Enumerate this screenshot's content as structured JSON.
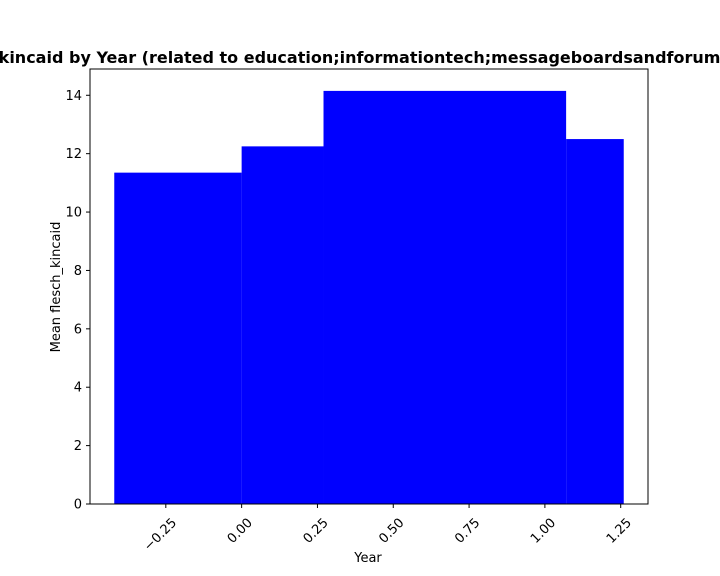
{
  "chart_data": {
    "type": "bar",
    "title": "Plot of Mean flesch_kincaid by Year (related to education;informationtech;messageboardsandforums Mean flesch_kincaid",
    "xlabel": "Year",
    "ylabel": "Mean flesch_kincaid",
    "xlim": [
      -0.5,
      1.34
    ],
    "ylim": [
      0,
      14.9
    ],
    "grid": false,
    "bars": [
      {
        "x0": -0.42,
        "x1": 0.0,
        "value": 11.35
      },
      {
        "x0": 0.0,
        "x1": 0.27,
        "value": 12.25
      },
      {
        "x0": 0.27,
        "x1": 1.07,
        "value": 14.15
      },
      {
        "x0": 1.07,
        "x1": 1.26,
        "value": 12.5
      }
    ],
    "xticks": [
      "-0.25",
      "0.00",
      "0.25",
      "0.50",
      "0.75",
      "1.00",
      "1.25"
    ],
    "xtick_labels": [
      "−0.25",
      "0.00",
      "0.25",
      "0.50",
      "0.75",
      "1.00",
      "1.25"
    ],
    "yticks": [
      "0",
      "2",
      "4",
      "6",
      "8",
      "10",
      "12",
      "14"
    ],
    "bar_color": "#0000ff"
  }
}
